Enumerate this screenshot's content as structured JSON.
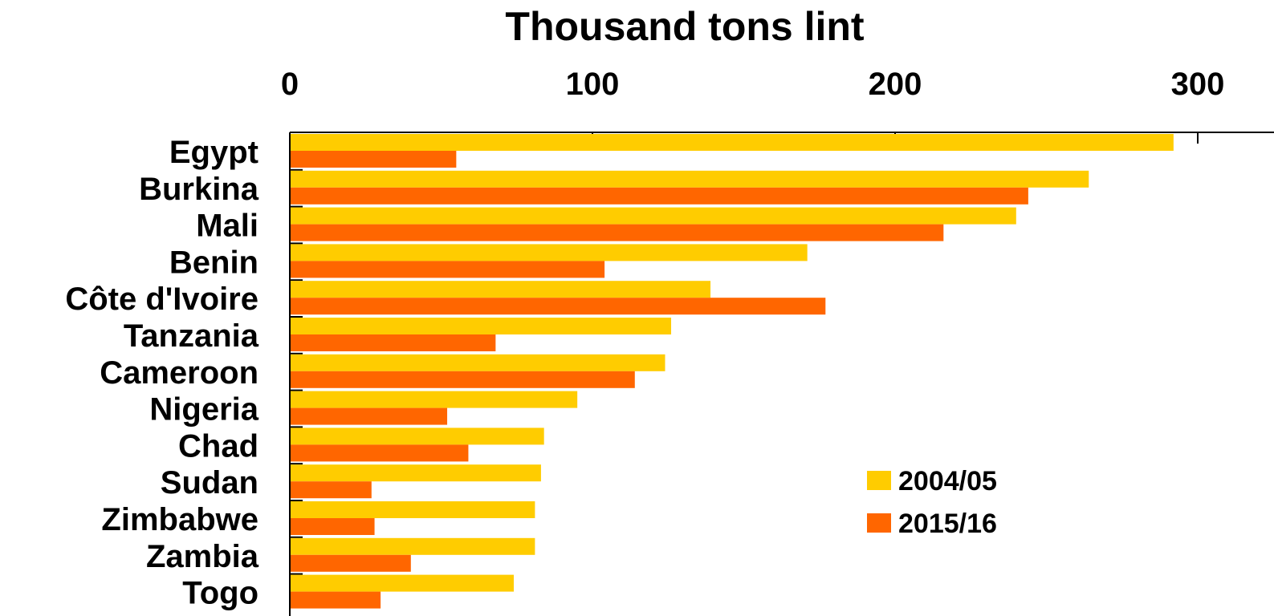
{
  "chart_data": {
    "type": "bar",
    "orientation": "horizontal",
    "title": "Thousand tons lint",
    "xlim": [
      0,
      310
    ],
    "x_ticks": [
      "0",
      "100",
      "200",
      "300"
    ],
    "x_tick_values": [
      0,
      100,
      200,
      300
    ],
    "axis_position": "top",
    "grid": false,
    "legend_placement": "lower-center-right",
    "categories": [
      "Egypt",
      "Burkina",
      "Mali",
      "Benin",
      "Côte d'Ivoire",
      "Tanzania",
      "Cameroon",
      "Nigeria",
      "Chad",
      "Sudan",
      "Zimbabwe",
      "Zambia",
      "Togo"
    ],
    "series": [
      {
        "name": "2004/05",
        "color": "#ffcc00",
        "values": [
          292,
          264,
          240,
          171,
          139,
          126,
          124,
          95,
          84,
          83,
          81,
          81,
          74
        ]
      },
      {
        "name": "2015/16",
        "color": "#ff6600",
        "values": [
          55,
          244,
          216,
          104,
          177,
          68,
          114,
          52,
          59,
          27,
          28,
          40,
          30
        ]
      }
    ]
  }
}
